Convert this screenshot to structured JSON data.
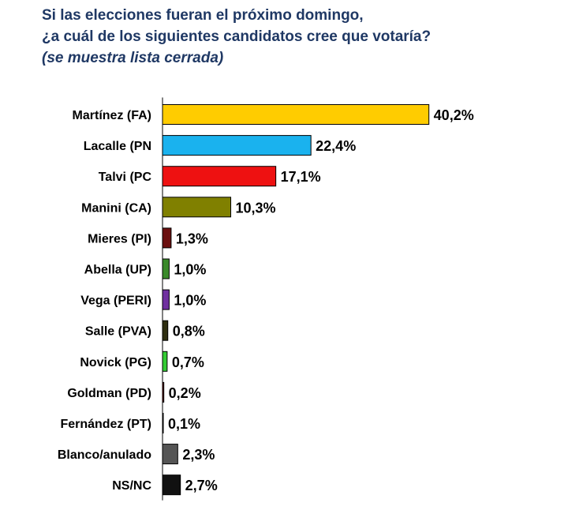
{
  "header": {
    "line1": "Si las elecciones fueran el próximo domingo,",
    "line2": "¿a cuál de los siguientes candidatos cree que votaría?",
    "note": "(se muestra lista cerrada)"
  },
  "chart_data": {
    "type": "bar",
    "orientation": "horizontal",
    "title": "Si las elecciones fueran el próximo domingo, ¿a cuál de los siguientes candidatos cree que votaría?",
    "subtitle": "(se muestra lista cerrada)",
    "grid": false,
    "legend": "none",
    "xlim": [
      0,
      45
    ],
    "categories": [
      "Martínez (FA)",
      "Lacalle (PN",
      "Talvi (PC",
      "Manini (CA)",
      "Mieres (PI)",
      "Abella (UP)",
      "Vega (PERI)",
      "Salle (PVA)",
      "Novick (PG)",
      "Goldman (PD)",
      "Fernández (PT)",
      "Blanco/anulado",
      "NS/NC"
    ],
    "values": [
      40.2,
      22.4,
      17.1,
      10.3,
      1.3,
      1.0,
      1.0,
      0.8,
      0.7,
      0.2,
      0.1,
      2.3,
      2.7
    ],
    "value_labels": [
      "40,2%",
      "22,4%",
      "17,1%",
      "10,3%",
      "1,3%",
      "1,0%",
      "1,0%",
      "0,8%",
      "0,7%",
      "0,2%",
      "0,1%",
      "2,3%",
      "2,7%"
    ],
    "colors": [
      "#ffcc00",
      "#1ab2ee",
      "#ee1111",
      "#808000",
      "#6b0f0f",
      "#3a8a2a",
      "#7030a0",
      "#2e2e10",
      "#33cc33",
      "#660000",
      "#222222",
      "#555555",
      "#111111"
    ]
  }
}
